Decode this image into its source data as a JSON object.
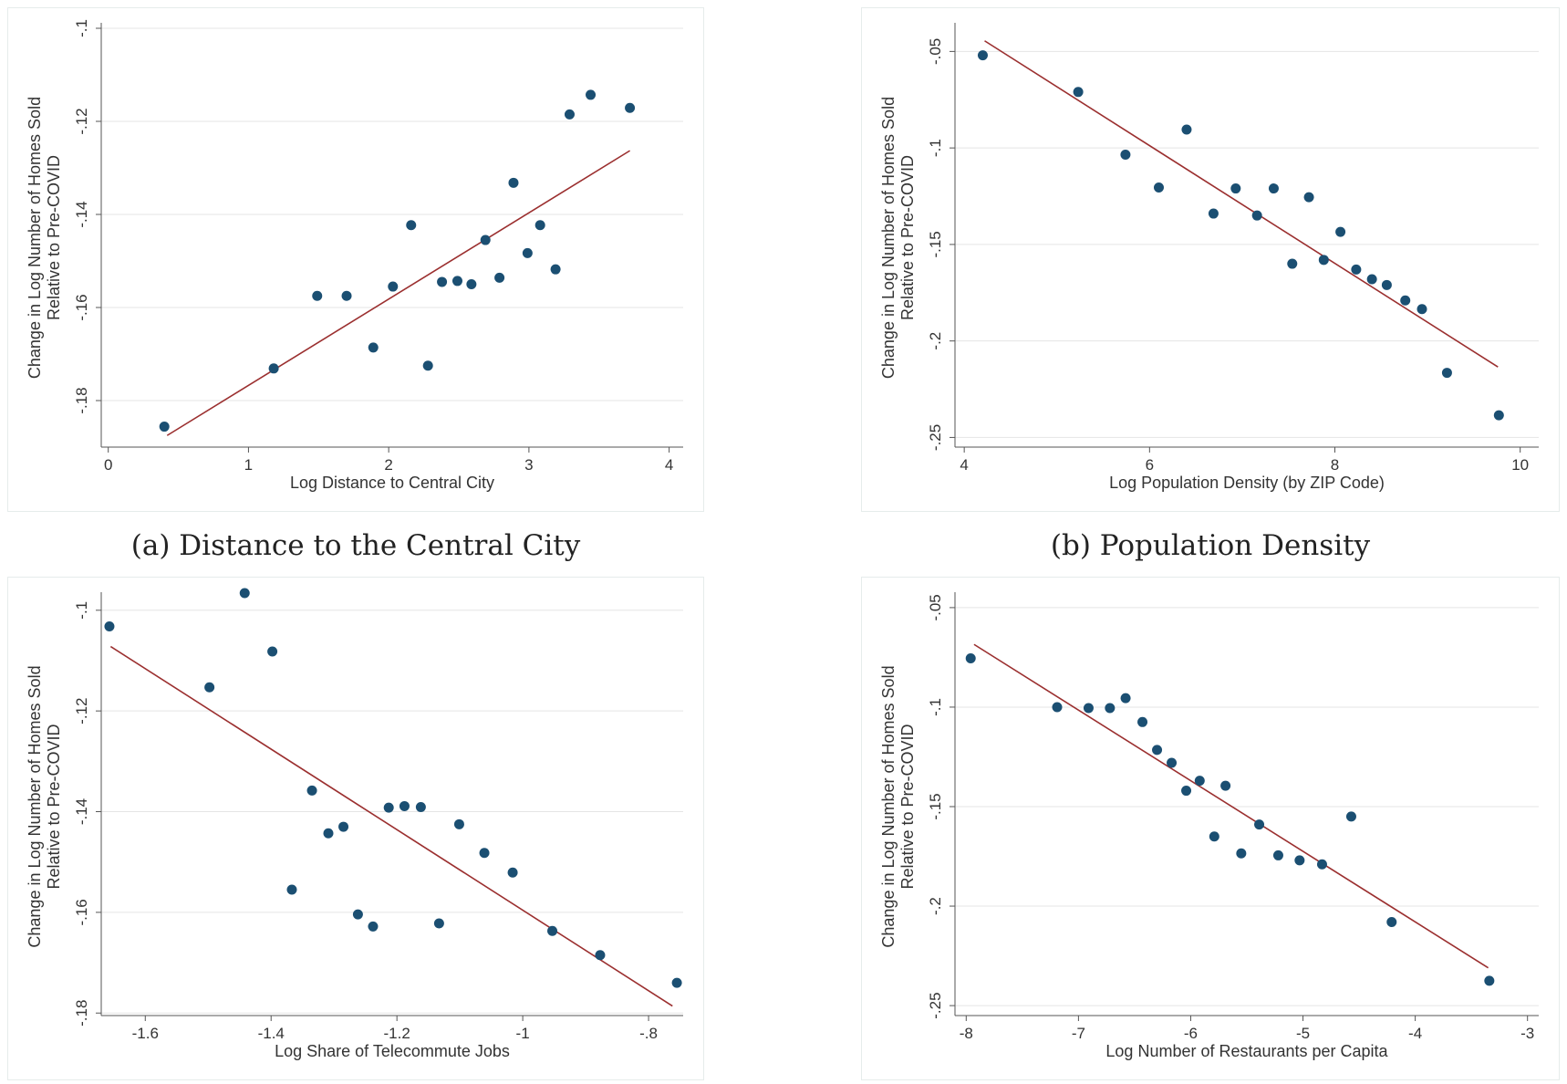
{
  "captions": {
    "a": "(a) Distance to the Central City",
    "b": "(b) Population Density"
  },
  "colors": {
    "point": "#1b4f72",
    "fit": "#9b2f2f",
    "grid": "#e5e5e5",
    "axis": "#555555"
  },
  "chart_data": [
    {
      "type": "scatter",
      "xlabel": "Log Distance to Central City",
      "ylabel": [
        "Change in Log Number of Homes Sold",
        "Relative to Pre-COVID"
      ],
      "xlim": [
        -0.05,
        4.1
      ],
      "ylim": [
        -0.19,
        -0.1
      ],
      "xticks": [
        0,
        1,
        2,
        3,
        4
      ],
      "xtick_labels": [
        "0",
        "1",
        "2",
        "3",
        "4"
      ],
      "yticks": [
        -0.18,
        -0.16,
        -0.14,
        -0.12,
        -0.1
      ],
      "ytick_labels": [
        "-.18",
        "-.16",
        "-.14",
        "-.12",
        "-.1"
      ],
      "x": [
        0.4,
        1.18,
        1.49,
        1.7,
        1.89,
        2.03,
        2.16,
        2.28,
        2.38,
        2.49,
        2.59,
        2.69,
        2.79,
        2.89,
        2.99,
        3.08,
        3.19,
        3.29,
        3.44,
        3.72
      ],
      "y": [
        -0.1856,
        -0.1731,
        -0.1575,
        -0.1575,
        -0.1686,
        -0.1555,
        -0.1423,
        -0.1725,
        -0.1545,
        -0.1543,
        -0.155,
        -0.1455,
        -0.1536,
        -0.1332,
        -0.1483,
        -0.1423,
        -0.1518,
        -0.1185,
        -0.1143,
        -0.1171
      ],
      "fit": {
        "x": [
          0.42,
          3.72
        ],
        "y": [
          -0.1875,
          -0.1263
        ]
      }
    },
    {
      "type": "scatter",
      "xlabel": "Log Population Density (by ZIP Code)",
      "ylabel": [
        "Change in Log Number of Homes Sold",
        "Relative to Pre-COVID"
      ],
      "xlim": [
        3.9,
        10.2
      ],
      "ylim": [
        -0.255,
        -0.038
      ],
      "xticks": [
        4,
        6,
        8,
        10
      ],
      "xtick_labels": [
        "4",
        "6",
        "8",
        "10"
      ],
      "yticks": [
        -0.25,
        -0.2,
        -0.15,
        -0.1,
        -0.05
      ],
      "ytick_labels": [
        "-.25",
        "-.2",
        "-.15",
        "-.1",
        "-.05"
      ],
      "x": [
        4.2,
        5.23,
        5.74,
        6.1,
        6.4,
        6.69,
        6.93,
        7.16,
        7.34,
        7.54,
        7.72,
        7.88,
        8.06,
        8.23,
        8.4,
        8.56,
        8.76,
        8.94,
        9.21,
        9.77
      ],
      "y": [
        -0.052,
        -0.071,
        -0.1035,
        -0.1205,
        -0.0905,
        -0.134,
        -0.121,
        -0.135,
        -0.121,
        -0.16,
        -0.1255,
        -0.158,
        -0.1435,
        -0.163,
        -0.168,
        -0.171,
        -0.179,
        -0.1835,
        -0.2165,
        -0.2385
      ],
      "fit": {
        "x": [
          4.22,
          9.76
        ],
        "y": [
          -0.0445,
          -0.2135
        ]
      }
    },
    {
      "type": "scatter",
      "xlabel": "Log Share of Telecommute Jobs",
      "ylabel": [
        "Change in Log Number of Homes Sold",
        "Relative to Pre-COVID"
      ],
      "xlim": [
        -1.67,
        -0.745
      ],
      "ylim": [
        -0.1805,
        -0.0975
      ],
      "xticks": [
        -1.6,
        -1.4,
        -1.2,
        -1.0,
        -0.8
      ],
      "xtick_labels": [
        "-1.6",
        "-1.4",
        "-1.2",
        "-1",
        "-.8"
      ],
      "yticks": [
        -0.18,
        -0.16,
        -0.14,
        -0.12,
        -0.1
      ],
      "ytick_labels": [
        "-.18",
        "-.16",
        "-.14",
        "-.12",
        "-.1"
      ],
      "x": [
        -1.657,
        -1.498,
        -1.442,
        -1.398,
        -1.367,
        -1.335,
        -1.309,
        -1.285,
        -1.262,
        -1.238,
        -1.213,
        -1.188,
        -1.162,
        -1.133,
        -1.101,
        -1.061,
        -1.016,
        -0.953,
        -0.877,
        -0.755
      ],
      "y": [
        -0.1032,
        -0.1153,
        -0.0966,
        -0.1082,
        -0.1555,
        -0.1358,
        -0.1443,
        -0.143,
        -0.1604,
        -0.1628,
        -0.1392,
        -0.1389,
        -0.1391,
        -0.1622,
        -0.1425,
        -0.1482,
        -0.1521,
        -0.1637,
        -0.1685,
        -0.174
      ],
      "fit": {
        "x": [
          -1.655,
          -0.762
        ],
        "y": [
          -0.1072,
          -0.1786
        ]
      }
    },
    {
      "type": "scatter",
      "xlabel": "Log Number of Restaurants per Capita",
      "ylabel": [
        "Change in Log Number of Homes Sold",
        "Relative to Pre-COVID"
      ],
      "xlim": [
        -8.1,
        -2.9
      ],
      "ylim": [
        -0.255,
        -0.045
      ],
      "xticks": [
        -8,
        -7,
        -6,
        -5,
        -4,
        -3
      ],
      "xtick_labels": [
        "-8",
        "-7",
        "-6",
        "-5",
        "-4",
        "-3"
      ],
      "yticks": [
        -0.25,
        -0.2,
        -0.15,
        -0.1,
        -0.05
      ],
      "ytick_labels": [
        "-.25",
        "-.2",
        "-.15",
        "-.1",
        "-.05"
      ],
      "x": [
        -7.96,
        -7.19,
        -6.91,
        -6.72,
        -6.58,
        -6.43,
        -6.3,
        -6.17,
        -6.04,
        -5.92,
        -5.79,
        -5.69,
        -5.55,
        -5.39,
        -5.22,
        -5.03,
        -4.83,
        -4.57,
        -4.21,
        -3.34
      ],
      "y": [
        -0.0755,
        -0.1,
        -0.1005,
        -0.1005,
        -0.0955,
        -0.1075,
        -0.1215,
        -0.128,
        -0.142,
        -0.137,
        -0.165,
        -0.1395,
        -0.1735,
        -0.159,
        -0.1745,
        -0.177,
        -0.179,
        -0.155,
        -0.208,
        -0.2375
      ],
      "fit": {
        "x": [
          -7.93,
          -3.35
        ],
        "y": [
          -0.0685,
          -0.231
        ]
      }
    }
  ]
}
